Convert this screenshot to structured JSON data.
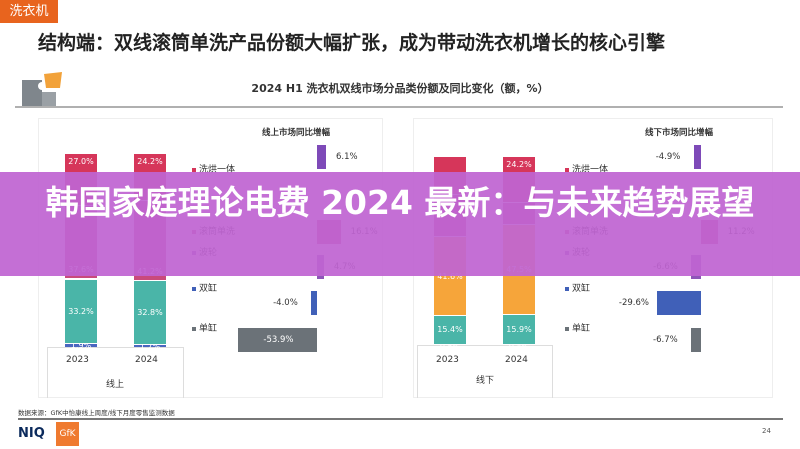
{
  "tag": "洗衣机",
  "title": "结构端：双线滚筒单洗产品份额大幅扩张，成为带动洗衣机增长的核心引擎",
  "subtitle": "2024 H1 洗衣机双线市场分品类份额及同比变化（额，%）",
  "banner": "韩国家庭理论电费 2024 最新：与未来趋势展望",
  "footer": {
    "source": "数据来源：GfK中怡康线上周度/线下月度零售监测数据",
    "logo_niq": "NIQ",
    "logo_gfk": "GfK",
    "page": "24"
  },
  "legend": [
    {
      "label": "洗烘一体",
      "color": "#d6365a"
    },
    {
      "label": "滚筒单洗",
      "color": "#c9467a"
    },
    {
      "label": "波轮",
      "color": "#8e56b8"
    },
    {
      "label": "双缸",
      "color": "#4060b8"
    },
    {
      "label": "单缸",
      "color": "#6b7278"
    }
  ],
  "chart_data": [
    {
      "type": "bar",
      "stacked": true,
      "group_label": "线上",
      "categories": [
        "2023",
        "2024"
      ],
      "segment_colors": [
        "#4a66c0",
        "#4ab5a8",
        "#f6a53a",
        "#c94a7c",
        "#d6365a"
      ],
      "stacks": [
        {
          "values": [
            1.9,
            33.2,
            0.3,
            37.6,
            27.0
          ],
          "labels": [
            "1.9%",
            "33.2%",
            "",
            "37.6%",
            "27.0%"
          ]
        },
        {
          "values": [
            1.7,
            32.8,
            0.1,
            41.2,
            24.2
          ],
          "labels": [
            "1.7%",
            "32.8%",
            "",
            "41.2%",
            "24.2%"
          ]
        }
      ]
    },
    {
      "type": "bar",
      "orientation": "horizontal",
      "title": "线上市场同比增幅",
      "rows": [
        {
          "category": "洗烘一体",
          "value": 6.1,
          "label": "6.1%",
          "color": "#7e4ab8"
        },
        {
          "category": "波轮",
          "value": 4.7,
          "label": "4.7%",
          "color": "#8e56b8"
        },
        {
          "category": "双缸",
          "value": -4.0,
          "label": "-4.0%",
          "color": "#4060b8"
        },
        {
          "category": "单缸",
          "value": -53.9,
          "label": "-53.9%",
          "color": "#6b7278"
        },
        {
          "category": "滚筒单洗",
          "value": 16.1,
          "label": "16.1%",
          "color": "#c9467a"
        }
      ]
    },
    {
      "type": "bar",
      "stacked": true,
      "group_label": "线下",
      "categories": [
        "2023",
        "2024"
      ],
      "segment_colors": [
        "#4a66c0",
        "#4ab5a8",
        "#f6a53a",
        "#c94a7c",
        "#d6365a"
      ],
      "stacks": [
        {
          "values": [
            0.5,
            15.4,
            41.6,
            22.5,
            20.0
          ],
          "labels": [
            "0.5%",
            "15.4%",
            "41.6%",
            "",
            ""
          ]
        },
        {
          "values": [
            0.4,
            15.9,
            47.5,
            12.0,
            24.2
          ],
          "labels": [
            "0.4%",
            "15.9%",
            "47.5%",
            "",
            "24.2%"
          ]
        }
      ]
    },
    {
      "type": "bar",
      "orientation": "horizontal",
      "title": "线下市场同比增幅",
      "rows": [
        {
          "category": "洗烘一体",
          "value": -4.9,
          "label": "-4.9%",
          "color": "#7e4ab8"
        },
        {
          "category": "滚筒单洗",
          "value": 11.2,
          "label": "11.2%",
          "color": "#c9467a"
        },
        {
          "category": "波轮",
          "value": -6.6,
          "label": "-6.6%",
          "color": "#8e56b8"
        },
        {
          "category": "双缸",
          "value": -29.6,
          "label": "-29.6%",
          "color": "#4060b8"
        },
        {
          "category": "单缸",
          "value": -6.7,
          "label": "-6.7%",
          "color": "#6b7278"
        }
      ]
    }
  ]
}
